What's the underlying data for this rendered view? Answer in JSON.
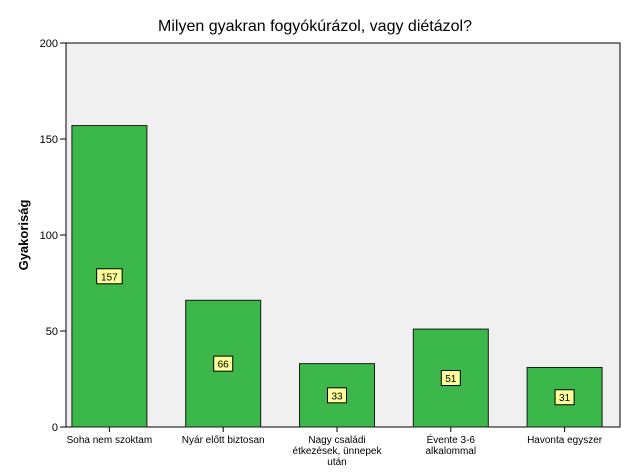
{
  "chart_data": {
    "type": "bar",
    "title": "Milyen gyakran fogyókúrázol, vagy diétázol?",
    "ylabel": "Gyakoriság",
    "xlabel": "",
    "categories": [
      [
        "Soha nem szoktam"
      ],
      [
        "Nyár előtt biztosan"
      ],
      [
        "Nagy családi",
        "étkezések, ünnepek",
        "után"
      ],
      [
        "Évente 3-6",
        "alkalommal"
      ],
      [
        "Havonta egyszer"
      ]
    ],
    "values": [
      157,
      66,
      33,
      51,
      31
    ],
    "ylim": [
      0,
      200
    ],
    "yticks": [
      0,
      50,
      100,
      150,
      200
    ],
    "grid": false,
    "legend": "none",
    "colors": {
      "bar": "#3cb84a",
      "bar_stroke": "#1a1a1a",
      "plot_bg": "#f0f0f0",
      "label_box": "#ffff99"
    }
  }
}
